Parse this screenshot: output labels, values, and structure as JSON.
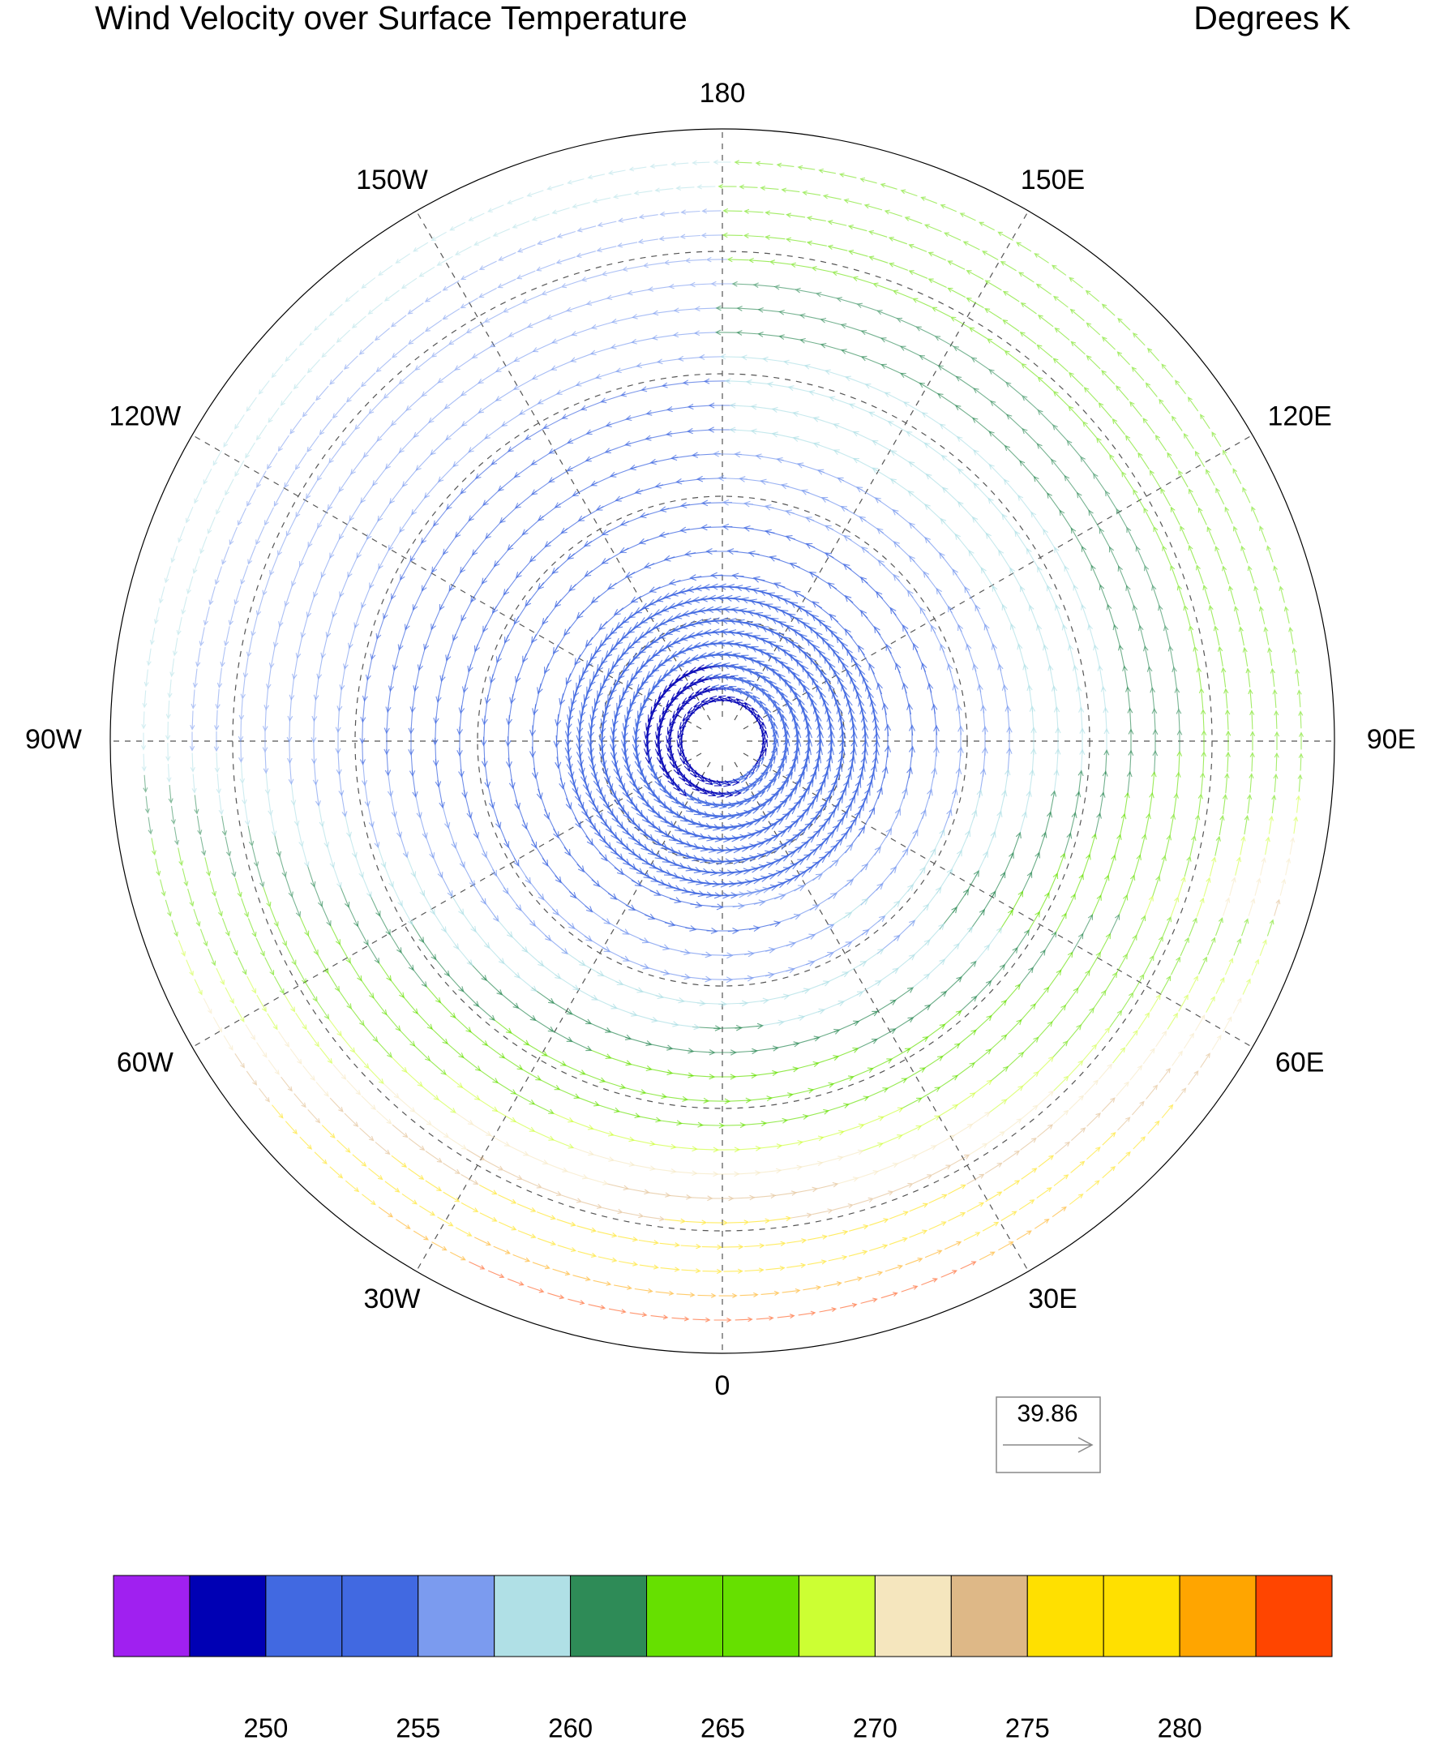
{
  "header": {
    "title": "Wind Velocity over Surface Temperature",
    "units": "Degrees K"
  },
  "map": {
    "longitude_labels": [
      "0",
      "30E",
      "60E",
      "90E",
      "120E",
      "150E",
      "180",
      "150W",
      "120W",
      "90W",
      "60W",
      "30W"
    ]
  },
  "reference_vector": {
    "label": "39.86"
  },
  "colorbar": {
    "colors": [
      "#A020F0",
      "#0000B4",
      "#4169E1",
      "#4169E1",
      "#7B9BEF",
      "#B0E0E6",
      "#2E8B57",
      "#66E000",
      "#66E000",
      "#CCFF33",
      "#F5E6BE",
      "#DEB887",
      "#FFE000",
      "#FFE000",
      "#FFA500",
      "#FF4500"
    ],
    "levels": [
      247.5,
      250,
      252.5,
      255,
      257.5,
      260,
      262.5,
      265,
      267.5,
      270,
      272.5,
      275,
      277.5,
      280,
      282.5
    ],
    "ticks": [
      250,
      255,
      260,
      265,
      270,
      275,
      280
    ]
  }
}
